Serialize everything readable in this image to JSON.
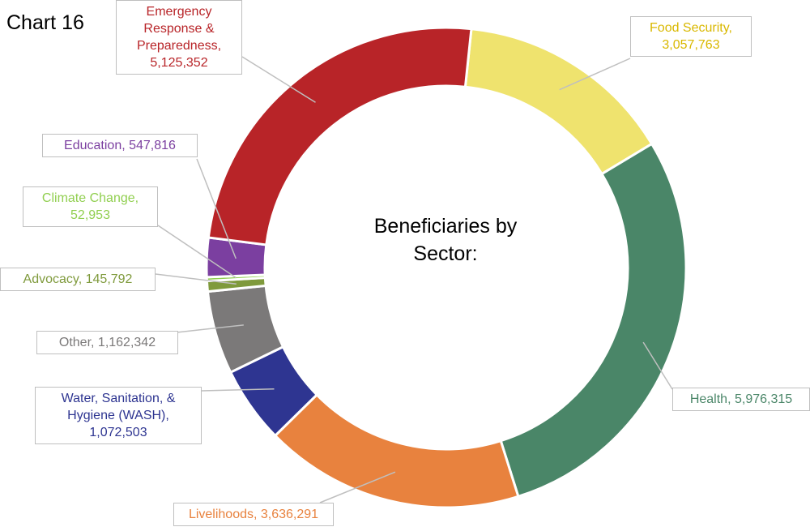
{
  "chart_data": {
    "type": "donut",
    "title": "Chart 16",
    "center_label": "Beneficiaries by Sector:",
    "values": [
      3057763,
      5976315,
      3636291,
      1072503,
      1162342,
      145792,
      52953,
      547816,
      5125352
    ],
    "value_labels": [
      "Food Security, 3,057,763",
      "Health, 5,976,315",
      "Livelihoods, 3,636,291",
      "Water, Sanitation, & Hygiene (WASH), 1,072,503",
      "Other, 1,162,342",
      "Advocacy, 145,792",
      "Climate Change, 52,953",
      "Education, 547,816",
      "Emergency Response & Preparedness, 5,125,352"
    ],
    "colors": [
      "#efe36e",
      "#4a8668",
      "#e8823e",
      "#2e3591",
      "#7b7979",
      "#7f9a3c",
      "#91cf50",
      "#7b3fa0",
      "#b82428"
    ]
  }
}
